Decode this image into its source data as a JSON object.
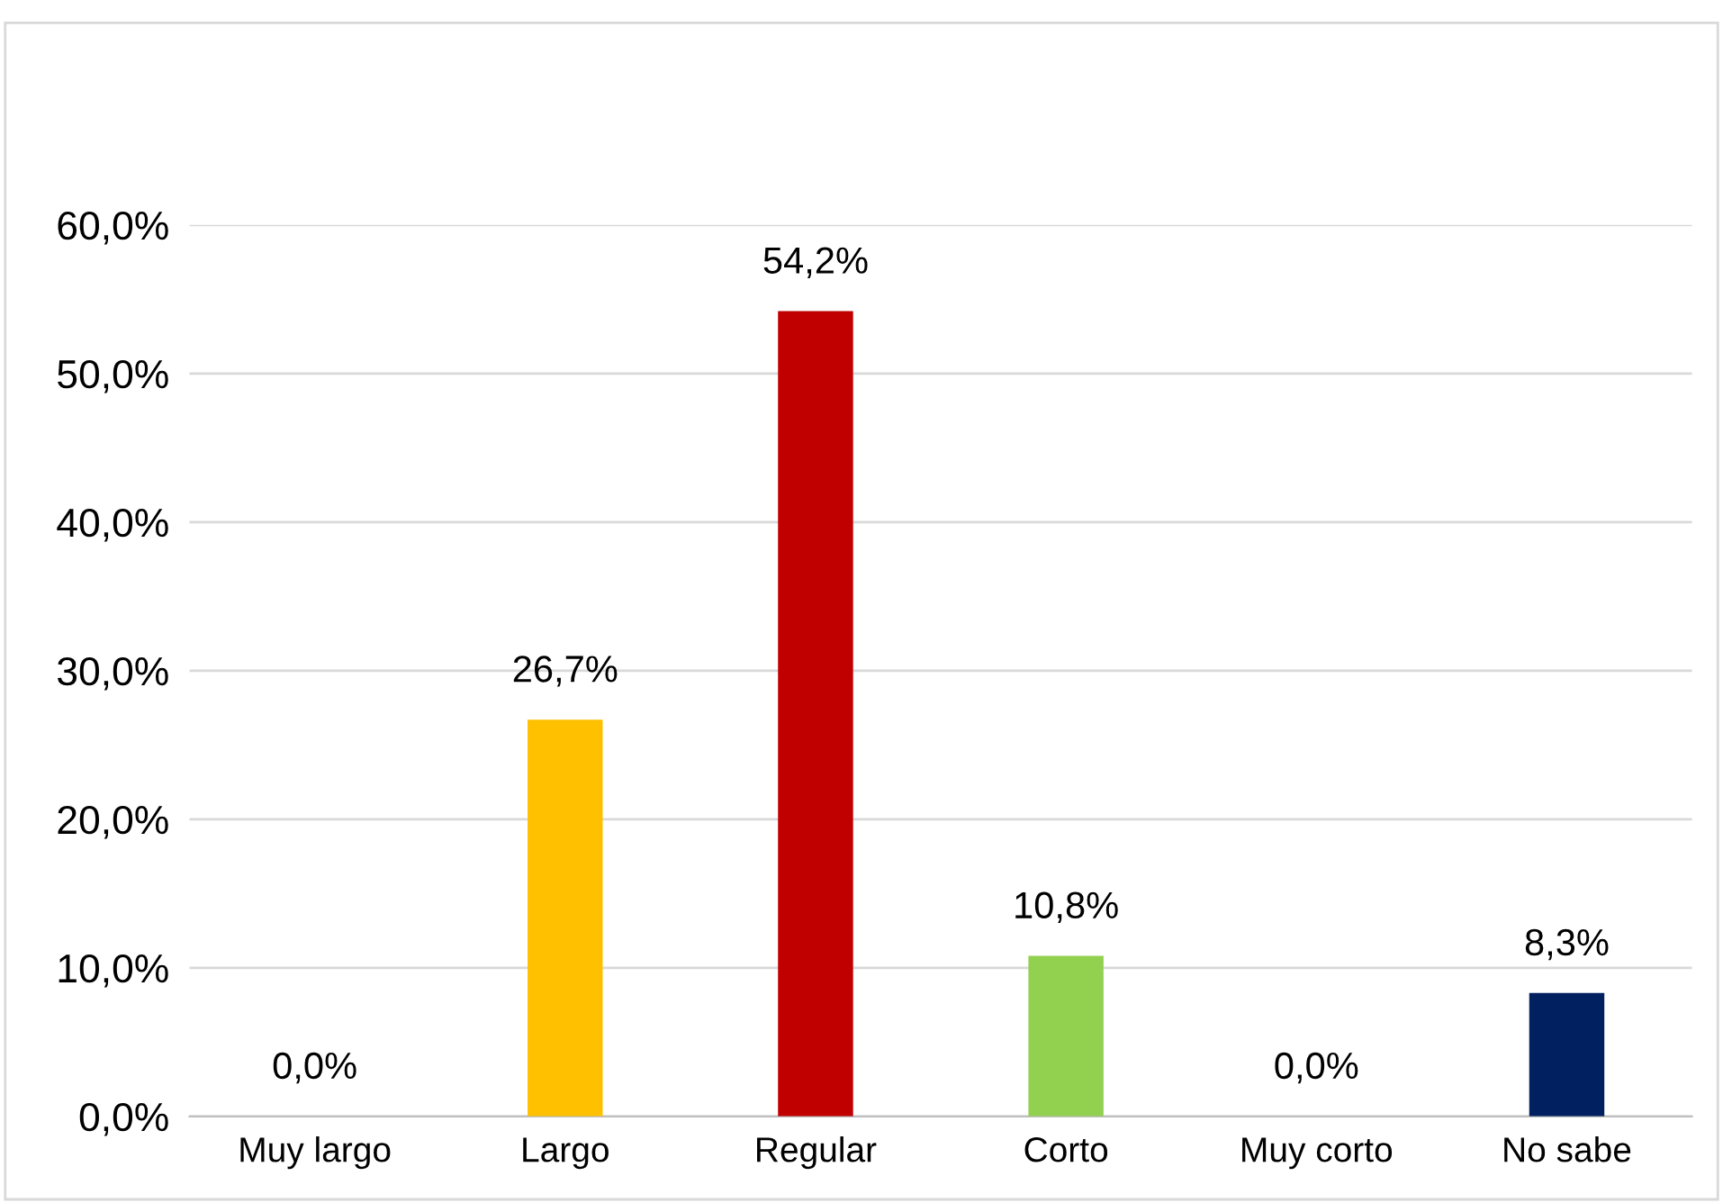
{
  "chart_data": {
    "type": "bar",
    "categories": [
      "Muy largo",
      "Largo",
      "Regular",
      "Corto",
      "Muy corto",
      "No sabe"
    ],
    "values": [
      0.0,
      26.7,
      54.2,
      10.8,
      0.0,
      8.3
    ],
    "colors": [
      "#4472c4",
      "#ffc000",
      "#c00000",
      "#92d050",
      "#4472c4",
      "#002060"
    ],
    "value_labels": [
      "0,0%",
      "26,7%",
      "54,2%",
      "10,8%",
      "0,0%",
      "8,3%"
    ],
    "ylim": [
      0,
      60
    ],
    "yticks": [
      {
        "value": 0,
        "label": "0,0%"
      },
      {
        "value": 10,
        "label": "10,0%"
      },
      {
        "value": 20,
        "label": "20,0%"
      },
      {
        "value": 30,
        "label": "30,0%"
      },
      {
        "value": 40,
        "label": "40,0%"
      },
      {
        "value": 50,
        "label": "50,0%"
      },
      {
        "value": 60,
        "label": "60,0%"
      }
    ],
    "grid": "y"
  }
}
